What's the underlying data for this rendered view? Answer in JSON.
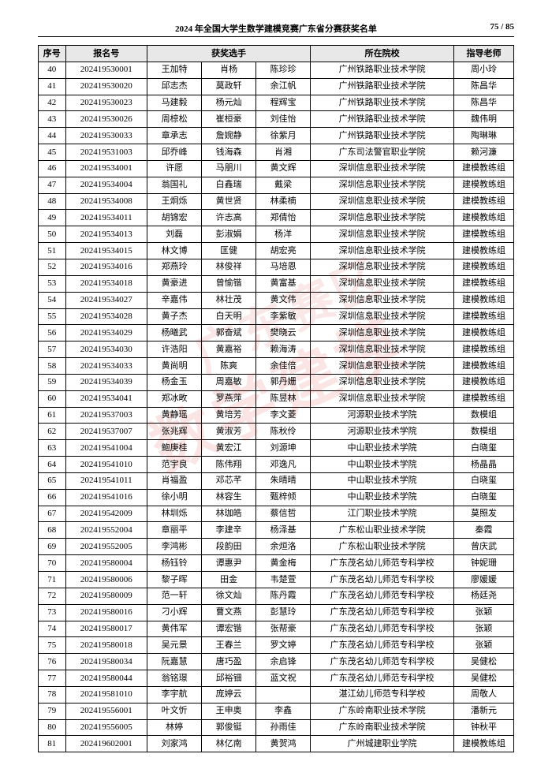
{
  "header": {
    "title": "2024 年全国大学生数学建模竞赛广东省分赛获奖名单",
    "page_current": "75",
    "page_total": "85"
  },
  "columns": {
    "idx": "序号",
    "reg": "报名号",
    "players": "获奖选手",
    "school": "所在院校",
    "teacher": "指导老师"
  },
  "watermark1": "数学建模",
  "watermark2": "广东赛区",
  "rows": [
    {
      "n": "40",
      "id": "202419530001",
      "p1": "王加特",
      "p2": "肖杨",
      "p3": "陈珍珍",
      "s": "广州铁路职业技术学院",
      "t": "周小玲"
    },
    {
      "n": "41",
      "id": "202419530020",
      "p1": "邱志杰",
      "p2": "莫政轩",
      "p3": "余江帆",
      "s": "广州铁路职业技术学院",
      "t": "陈昌华"
    },
    {
      "n": "42",
      "id": "202419530023",
      "p1": "马建毅",
      "p2": "杨元灿",
      "p3": "程辉宝",
      "s": "广州铁路职业技术学院",
      "t": "陈昌华"
    },
    {
      "n": "43",
      "id": "202419530026",
      "p1": "周椋松",
      "p2": "崔桓豪",
      "p3": "刘佳怡",
      "s": "广州铁路职业技术学院",
      "t": "魏伟明"
    },
    {
      "n": "44",
      "id": "202419530033",
      "p1": "章承志",
      "p2": "詹婉静",
      "p3": "徐紫月",
      "s": "广州铁路职业技术学院",
      "t": "陶琳琳"
    },
    {
      "n": "45",
      "id": "202419531003",
      "p1": "邱乔峰",
      "p2": "钱海森",
      "p3": "肖湘",
      "s": "广东司法警官职业学院",
      "t": "赖河濂"
    },
    {
      "n": "46",
      "id": "202419534001",
      "p1": "许愿",
      "p2": "马朋川",
      "p3": "黄文辉",
      "s": "深圳信息职业技术学院",
      "t": "建模教练组"
    },
    {
      "n": "47",
      "id": "202419534004",
      "p1": "翁国礼",
      "p2": "白鑫瑞",
      "p3": "戴梁",
      "s": "深圳信息职业技术学院",
      "t": "建模教练组"
    },
    {
      "n": "48",
      "id": "202419534008",
      "p1": "王炯烁",
      "p2": "黄世贤",
      "p3": "林柔楠",
      "s": "深圳信息职业技术学院",
      "t": "建模教练组"
    },
    {
      "n": "49",
      "id": "202419534011",
      "p1": "胡锦宏",
      "p2": "许志高",
      "p3": "郑倩怡",
      "s": "深圳信息职业技术学院",
      "t": "建模教练组"
    },
    {
      "n": "50",
      "id": "202419534013",
      "p1": "刘磊",
      "p2": "彭淑娟",
      "p3": "杨洋",
      "s": "深圳信息职业技术学院",
      "t": "建模教练组"
    },
    {
      "n": "51",
      "id": "202419534015",
      "p1": "林文博",
      "p2": "匡健",
      "p3": "胡宏亮",
      "s": "深圳信息职业技术学院",
      "t": "建模教练组"
    },
    {
      "n": "52",
      "id": "202419534016",
      "p1": "郑燕玲",
      "p2": "林俊祥",
      "p3": "马培恩",
      "s": "深圳信息职业技术学院",
      "t": "建模教练组"
    },
    {
      "n": "53",
      "id": "202419534018",
      "p1": "黄豪进",
      "p2": "曾愉锴",
      "p3": "黄富基",
      "s": "深圳信息职业技术学院",
      "t": "建模教练组"
    },
    {
      "n": "54",
      "id": "202419534027",
      "p1": "辛嘉伟",
      "p2": "林壮茂",
      "p3": "黄文伟",
      "s": "深圳信息职业技术学院",
      "t": "建模教练组"
    },
    {
      "n": "55",
      "id": "202419534028",
      "p1": "黄子杰",
      "p2": "白天明",
      "p3": "李紫敏",
      "s": "深圳信息职业技术学院",
      "t": "建模教练组"
    },
    {
      "n": "56",
      "id": "202419534029",
      "p1": "杨曦武",
      "p2": "郭奋斌",
      "p3": "樊晓云",
      "s": "深圳信息职业技术学院",
      "t": "建模教练组"
    },
    {
      "n": "57",
      "id": "202419534030",
      "p1": "许浩阳",
      "p2": "黄嘉裕",
      "p3": "赖海涛",
      "s": "深圳信息职业技术学院",
      "t": "建模教练组"
    },
    {
      "n": "58",
      "id": "202419534033",
      "p1": "黄尚明",
      "p2": "陈爽",
      "p3": "余佳倍",
      "s": "深圳信息职业技术学院",
      "t": "建模教练组"
    },
    {
      "n": "59",
      "id": "202419534039",
      "p1": "杨金玉",
      "p2": "周嘉敏",
      "p3": "郭丹姗",
      "s": "深圳信息职业技术学院",
      "t": "建模教练组"
    },
    {
      "n": "60",
      "id": "202419534041",
      "p1": "郑冰畋",
      "p2": "罗燕萍",
      "p3": "陈昱林",
      "s": "深圳信息职业技术学院",
      "t": "建模教练组"
    },
    {
      "n": "61",
      "id": "202419537003",
      "p1": "黄静瑶",
      "p2": "黄培芳",
      "p3": "李文菱",
      "s": "河源职业技术学院",
      "t": "数模组"
    },
    {
      "n": "62",
      "id": "202419537007",
      "p1": "张兆辉",
      "p2": "黄淑芳",
      "p3": "陈秋伶",
      "s": "河源职业技术学院",
      "t": "数模组"
    },
    {
      "n": "63",
      "id": "202419541004",
      "p1": "鲍庚桂",
      "p2": "黄宏江",
      "p3": "刘源坤",
      "s": "中山职业技术学院",
      "t": "白晓玺"
    },
    {
      "n": "64",
      "id": "202419541010",
      "p1": "范宇良",
      "p2": "陈伟翔",
      "p3": "邓逸凡",
      "s": "中山职业技术学院",
      "t": "杨晶晶"
    },
    {
      "n": "65",
      "id": "202419541011",
      "p1": "肖福盈",
      "p2": "邓芯芊",
      "p3": "朱晴晴",
      "s": "中山职业技术学院",
      "t": "白晓玺"
    },
    {
      "n": "66",
      "id": "202419541016",
      "p1": "徐小明",
      "p2": "林容生",
      "p3": "甄梓倾",
      "s": "中山职业技术学院",
      "t": "白晓玺"
    },
    {
      "n": "67",
      "id": "202419542009",
      "p1": "林圳烁",
      "p2": "林珈皓",
      "p3": "蔡信哲",
      "s": "江门职业技术学院",
      "t": "莫照发"
    },
    {
      "n": "68",
      "id": "202419552004",
      "p1": "章丽平",
      "p2": "李建辛",
      "p3": "杨泽基",
      "s": "广东松山职业技术学院",
      "t": "秦霞"
    },
    {
      "n": "69",
      "id": "202419552005",
      "p1": "李鸿彬",
      "p2": "段韵田",
      "p3": "余烜洛",
      "s": "广东松山职业技术学院",
      "t": "曾庆武"
    },
    {
      "n": "70",
      "id": "202419580004",
      "p1": "杨钰铃",
      "p2": "谭惠尹",
      "p3": "黄金梅",
      "s": "广东茂名幼儿师范专科学校",
      "t": "钟妮珊"
    },
    {
      "n": "71",
      "id": "202419580006",
      "p1": "黎子晖",
      "p2": "田金",
      "p3": "韦楚萱",
      "s": "广东茂名幼儿师范专科学校",
      "t": "廖媛媛"
    },
    {
      "n": "72",
      "id": "202419580009",
      "p1": "范一轩",
      "p2": "徐文灿",
      "p3": "陈丹霞",
      "s": "广东茂名幼儿师范专科学校",
      "t": "杨廷尧"
    },
    {
      "n": "73",
      "id": "202419580016",
      "p1": "刁小辉",
      "p2": "曹文燕",
      "p3": "彭慧玲",
      "s": "广东茂名幼儿师范专科学校",
      "t": "张颖"
    },
    {
      "n": "74",
      "id": "202419580017",
      "p1": "黄伟军",
      "p2": "谭宏锴",
      "p3": "张帮豪",
      "s": "广东茂名幼儿师范专科学校",
      "t": "张颖"
    },
    {
      "n": "75",
      "id": "202419580018",
      "p1": "吴元景",
      "p2": "王春兰",
      "p3": "罗文婷",
      "s": "广东茂名幼儿师范专科学校",
      "t": "张颖"
    },
    {
      "n": "76",
      "id": "202419580034",
      "p1": "阮嘉慧",
      "p2": "唐巧盈",
      "p3": "余启锋",
      "s": "广东茂名幼儿师范专科学校",
      "t": "吴健松"
    },
    {
      "n": "77",
      "id": "202419580044",
      "p1": "翁铭璟",
      "p2": "邱裕钿",
      "p3": "蓝文祝",
      "s": "广东茂名幼儿师范专科学校",
      "t": "吴健松"
    },
    {
      "n": "78",
      "id": "202419581010",
      "p1": "李宇航",
      "p2": "庞婷云",
      "p3": "",
      "s": "湛江幼儿师范专科学校",
      "t": "周敬人"
    },
    {
      "n": "79",
      "id": "202419556001",
      "p1": "叶文忻",
      "p2": "王申奥",
      "p3": "李鑫",
      "s": "广东岭南职业技术学院",
      "t": "潘新元"
    },
    {
      "n": "80",
      "id": "202419556005",
      "p1": "林婷",
      "p2": "郭俊铤",
      "p3": "孙雨佳",
      "s": "广东岭南职业技术学院",
      "t": "钟秋平"
    },
    {
      "n": "81",
      "id": "202419602001",
      "p1": "刘家鸿",
      "p2": "林亿南",
      "p3": "黄贺鸿",
      "s": "广州城建职业学院",
      "t": "建模教练组"
    }
  ]
}
